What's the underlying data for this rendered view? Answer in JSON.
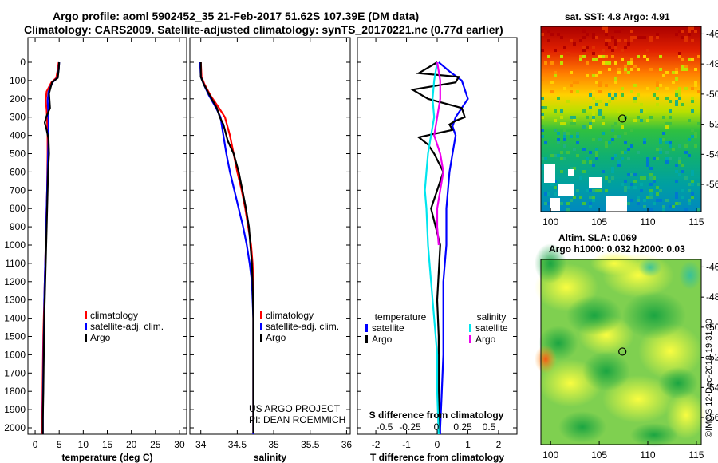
{
  "header": {
    "line1": "Argo profile: aoml 5902452_35 21-Feb-2017 51.62S 107.39E (DM data)",
    "line2": "Climatology: CARS2009. Satellite-adjusted climatology: synTS_20170221.nc (0.77d earlier)"
  },
  "colors": {
    "climatology": "#ff0000",
    "satellite": "#0000ff",
    "argo": "#000000",
    "cyan": "#00e5ee",
    "magenta": "#ee00ee"
  },
  "chart_data": [
    {
      "type": "line",
      "id": "temperature",
      "xlabel": "temperature (deg C)",
      "xlim": [
        -1.5,
        31.5
      ],
      "ylim": [
        2080,
        0
      ],
      "x_ticks": [
        0,
        5,
        10,
        15,
        20,
        25,
        30
      ],
      "y_ticks": [
        0,
        100,
        200,
        300,
        400,
        500,
        600,
        700,
        800,
        900,
        1000,
        1100,
        1200,
        1300,
        1400,
        1500,
        1600,
        1700,
        1800,
        1900,
        2000
      ],
      "legend": [
        "climatology",
        "satellite-adj. clim.",
        "Argo"
      ],
      "series": [
        {
          "name": "climatology",
          "color": "red",
          "x": [
            4.9,
            4.7,
            4.4,
            3.4,
            2.4,
            2.2,
            2.4,
            2.5,
            2.6,
            2.6,
            2.55,
            2.5,
            2.4,
            2.3,
            2.2,
            2.1,
            2.0,
            1.9,
            1.8,
            1.7,
            1.6,
            1.5,
            1.5
          ],
          "y": [
            0,
            40,
            85,
            110,
            160,
            210,
            260,
            320,
            400,
            500,
            600,
            700,
            800,
            900,
            1000,
            1100,
            1200,
            1300,
            1400,
            1500,
            1700,
            1900,
            2050
          ]
        },
        {
          "name": "satellite-adj. clim.",
          "color": "blue",
          "x": [
            5.0,
            4.9,
            4.6,
            3.6,
            2.8,
            2.6,
            2.7,
            2.8,
            2.8,
            2.7,
            2.6,
            2.5,
            2.4,
            2.3,
            2.2,
            2.1,
            2.0,
            1.9,
            1.9,
            1.8,
            1.7,
            1.6,
            1.6
          ],
          "y": [
            0,
            40,
            85,
            110,
            160,
            210,
            260,
            320,
            400,
            500,
            600,
            700,
            800,
            900,
            1000,
            1100,
            1200,
            1300,
            1400,
            1500,
            1700,
            1900,
            2050
          ]
        },
        {
          "name": "Argo",
          "color": "black",
          "x": [
            5.0,
            4.9,
            4.7,
            3.5,
            2.9,
            3.1,
            2.3,
            2.0,
            2.4,
            2.8,
            2.9,
            2.7,
            2.6,
            2.5,
            2.4,
            2.3,
            2.2,
            2.1,
            2.0,
            1.9,
            1.8,
            1.7,
            1.6,
            1.6
          ],
          "y": [
            0,
            40,
            85,
            110,
            170,
            250,
            300,
            330,
            370,
            420,
            500,
            600,
            700,
            800,
            900,
            1000,
            1100,
            1200,
            1300,
            1400,
            1600,
            1800,
            1950,
            2040
          ]
        }
      ]
    },
    {
      "type": "line",
      "id": "salinity",
      "xlabel": "salinity",
      "xlim": [
        33.85,
        36.05
      ],
      "ylim": [
        2080,
        0
      ],
      "x_ticks": [
        34,
        34.5,
        35,
        35.5,
        36
      ],
      "x_tick_labels": [
        "34",
        "34.5",
        "35",
        "35.5",
        "36"
      ],
      "legend": [
        "climatology",
        "satellite-adj. clim.",
        "Argo"
      ],
      "annotation": [
        "US ARGO PROJECT",
        "PI: DEAN ROEMMICH"
      ],
      "series": [
        {
          "name": "climatology",
          "color": "red",
          "x": [
            34.0,
            34.01,
            34.05,
            34.13,
            34.25,
            34.33,
            34.4,
            34.45,
            34.5,
            34.56,
            34.61,
            34.65,
            34.69,
            34.71,
            34.72,
            34.72,
            34.72,
            34.72
          ],
          "y": [
            0,
            80,
            120,
            180,
            250,
            300,
            400,
            500,
            600,
            700,
            800,
            900,
            1000,
            1100,
            1200,
            1400,
            1700,
            2050
          ]
        },
        {
          "name": "satellite-adj. clim.",
          "color": "blue",
          "x": [
            33.99,
            34.0,
            34.04,
            34.11,
            34.21,
            34.27,
            34.31,
            34.35,
            34.4,
            34.46,
            34.52,
            34.58,
            34.63,
            34.67,
            34.7,
            34.72,
            34.72,
            34.72
          ],
          "y": [
            0,
            80,
            120,
            180,
            250,
            300,
            400,
            500,
            600,
            700,
            800,
            900,
            1000,
            1100,
            1200,
            1400,
            1700,
            2050
          ]
        },
        {
          "name": "Argo",
          "color": "black",
          "x": [
            34.0,
            34.0,
            34.04,
            34.12,
            34.22,
            34.26,
            34.31,
            34.35,
            34.37,
            34.45,
            34.52,
            34.57,
            34.62,
            34.66,
            34.68,
            34.7,
            34.71,
            34.72,
            34.72,
            34.72
          ],
          "y": [
            0,
            80,
            120,
            180,
            250,
            300,
            340,
            400,
            430,
            500,
            600,
            700,
            800,
            900,
            1000,
            1100,
            1200,
            1400,
            1700,
            2030
          ]
        }
      ]
    },
    {
      "type": "line",
      "id": "difference",
      "xlabel": "T difference from climatology",
      "top_label": "S difference from climatology",
      "xlim": [
        -2.6,
        2.6
      ],
      "ylim": [
        2080,
        0
      ],
      "x_ticks": [
        -2,
        -1,
        0,
        1,
        2
      ],
      "s_ticks": [
        "-0.5",
        "-0.25",
        "0",
        "0.25",
        "0.5"
      ],
      "legend_left_title": "temperature",
      "legend_right_title": "salinity",
      "legend_left": [
        "satellite",
        "Argo"
      ],
      "legend_right": [
        "satellite",
        "Argo"
      ],
      "series": [
        {
          "name": "T satellite",
          "color": "blue",
          "x": [
            0.05,
            0.4,
            0.8,
            1.0,
            0.6,
            0.5,
            0.6,
            0.5,
            0.4,
            0.3,
            0.3,
            0.2,
            0.2,
            0.2,
            0.2,
            0.15,
            0.1,
            0.1
          ],
          "y": [
            0,
            50,
            100,
            200,
            300,
            350,
            400,
            500,
            600,
            800,
            1000,
            1200,
            1400,
            1500,
            1600,
            1800,
            2000,
            2050
          ]
        },
        {
          "name": "T Argo",
          "color": "black",
          "x": [
            0,
            -0.6,
            0.7,
            0.6,
            -0.8,
            -0.3,
            0.8,
            0.9,
            0.6,
            0.4,
            0.5,
            -0.6,
            -0.3,
            -0.1,
            0.2,
            -0.2,
            0.1,
            0,
            0.05,
            0.05,
            0.05
          ],
          "y": [
            0,
            60,
            80,
            110,
            150,
            200,
            250,
            300,
            320,
            340,
            370,
            410,
            450,
            500,
            600,
            800,
            1000,
            1300,
            1500,
            1800,
            2050
          ]
        },
        {
          "name": "S satellite",
          "color": "cyan",
          "x": [
            0,
            -0.1,
            -0.15,
            -0.1,
            -0.2,
            -0.3,
            -0.35,
            -0.4,
            -0.35,
            -0.3,
            -0.2,
            -0.1,
            0,
            0,
            0.05
          ],
          "y": [
            0,
            100,
            200,
            300,
            400,
            500,
            600,
            700,
            800,
            1000,
            1200,
            1400,
            1600,
            1800,
            2050
          ]
        },
        {
          "name": "S Argo",
          "color": "magenta",
          "x": [
            0,
            0.1,
            0.1,
            0.0,
            -0.1,
            0.1,
            0.2,
            0.1,
            0.0,
            0.0,
            0.05
          ],
          "y": [
            0,
            100,
            200,
            300,
            400,
            500,
            600,
            700,
            800,
            900,
            1000
          ]
        }
      ]
    },
    {
      "type": "heatmap",
      "id": "sst_map",
      "title": "sat. SST: 4.8 Argo: 4.91",
      "xlim": [
        99,
        115.5
      ],
      "ylim": [
        -57.8,
        -45.5
      ],
      "x_ticks": [
        100,
        105,
        110,
        115
      ],
      "y_ticks": [
        -46,
        -48,
        -50,
        -52,
        -54,
        -56
      ],
      "float_lon": 107.39,
      "float_lat": -51.62
    },
    {
      "type": "heatmap",
      "id": "sla_map",
      "title": "Altim. SLA: 0.069",
      "subtitle": "Argo h1000: 0.032 h2000: 0.03",
      "xlim": [
        99,
        115.5
      ],
      "ylim": [
        -57.8,
        -45.5
      ],
      "x_ticks": [
        100,
        105,
        110,
        115
      ],
      "y_ticks": [
        -46,
        -48,
        -50,
        -52,
        -54,
        -56
      ],
      "float_lon": 107.39,
      "float_lat": -51.62
    }
  ],
  "credit": "©IMOS 12-Dec-2018 19:31:30"
}
